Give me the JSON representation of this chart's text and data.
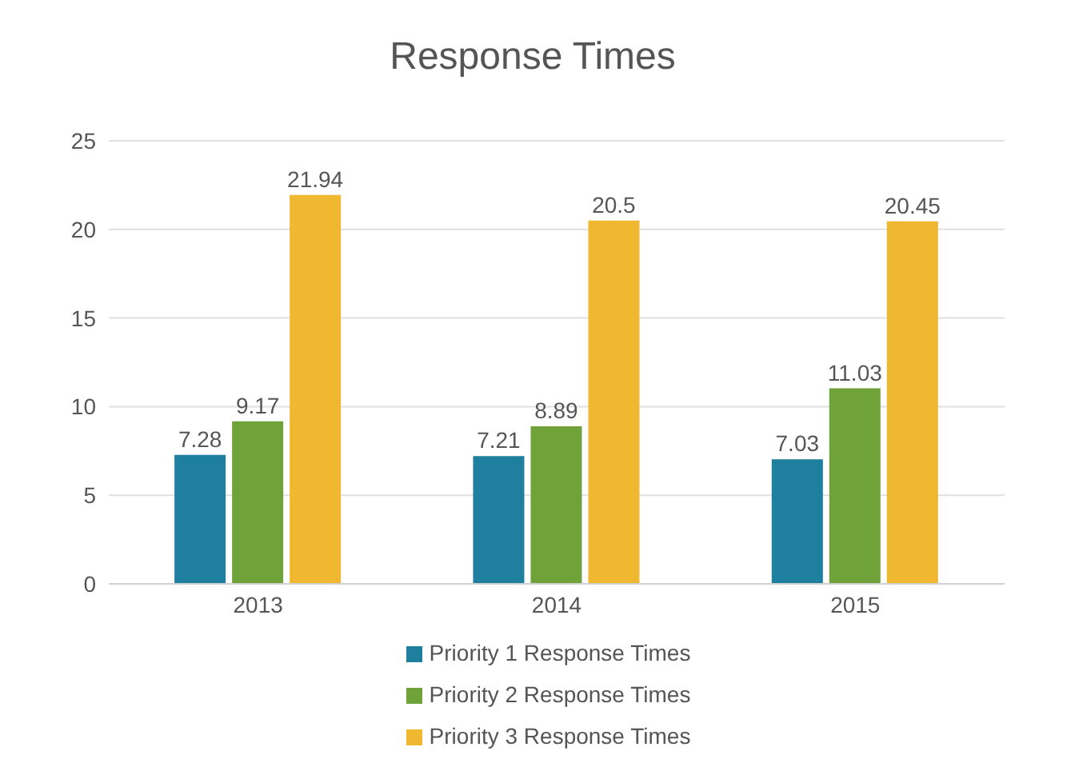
{
  "chart_data": {
    "type": "bar",
    "title": "Response Times",
    "categories": [
      "2013",
      "2014",
      "2015"
    ],
    "series": [
      {
        "name": "Priority 1 Response Times",
        "color": "#1f7f9f",
        "values": [
          7.28,
          7.21,
          7.03
        ]
      },
      {
        "name": "Priority 2 Response Times",
        "color": "#70a23a",
        "values": [
          9.17,
          8.89,
          11.03
        ]
      },
      {
        "name": "Priority 3 Response Times",
        "color": "#f0b830",
        "values": [
          21.94,
          20.5,
          20.45
        ]
      }
    ],
    "ylim": [
      0,
      25
    ],
    "yticks": [
      0,
      5,
      10,
      15,
      20,
      25
    ],
    "grid": "y",
    "legend": "bottom",
    "data_labels": true
  }
}
